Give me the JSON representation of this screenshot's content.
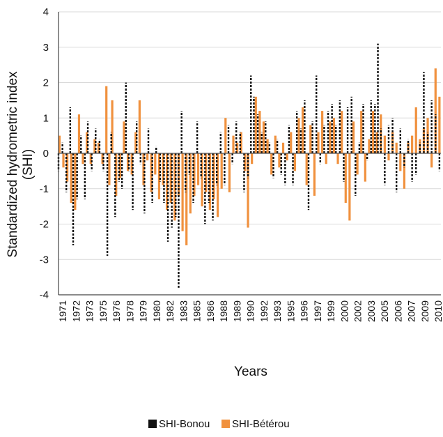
{
  "chart_data": {
    "type": "bar",
    "xlabel": "Years",
    "ylabel_lines": [
      "Standardized hydrometric index",
      "(SHI)"
    ],
    "ylim": [
      -4,
      4
    ],
    "yticks": [
      4,
      3,
      2,
      1,
      0,
      -1,
      -2,
      -3,
      -4
    ],
    "grid": "horizontal",
    "legend_position": "bottom",
    "x_year_range": [
      1971,
      2010
    ],
    "x_tick_labels": [
      "1971",
      "1972",
      "1973",
      "1975",
      "1976",
      "1978",
      "1979",
      "1980",
      "1982",
      "1983",
      "1985",
      "1986",
      "1988",
      "1989",
      "1990",
      "1992",
      "1993",
      "1995",
      "1996",
      "1997",
      "1999",
      "2000",
      "2002",
      "2003",
      "2005",
      "2006",
      "2007",
      "2009",
      "2010"
    ],
    "series": [
      {
        "name": "SHI-Bonou",
        "color": "#111111",
        "style": "dashed-bar",
        "x": [
          1971.0,
          1971.4,
          1971.8,
          1972.2,
          1972.5,
          1972.9,
          1973.3,
          1973.7,
          1974.0,
          1974.4,
          1974.8,
          1975.2,
          1975.6,
          1976.0,
          1976.4,
          1976.8,
          1977.2,
          1977.5,
          1977.9,
          1978.2,
          1978.6,
          1979.0,
          1979.4,
          1979.8,
          1980.2,
          1980.6,
          1981.0,
          1981.4,
          1981.8,
          1982.2,
          1982.6,
          1983.0,
          1983.3,
          1983.6,
          1984.0,
          1984.4,
          1984.8,
          1985.2,
          1985.6,
          1986.0,
          1986.4,
          1986.8,
          1987.2,
          1987.6,
          1988.0,
          1988.4,
          1988.8,
          1989.2,
          1989.6,
          1990.0,
          1990.4,
          1990.7,
          1991.0,
          1991.4,
          1991.8,
          1992.2,
          1992.6,
          1993.0,
          1993.4,
          1993.8,
          1994.2,
          1994.6,
          1995.0,
          1995.4,
          1995.8,
          1996.2,
          1996.6,
          1997.0,
          1997.4,
          1997.8,
          1998.2,
          1998.6,
          1999.0,
          1999.4,
          1999.8,
          2000.2,
          2000.6,
          2001.0,
          2001.4,
          2001.8,
          2002.2,
          2002.6,
          2003.0,
          2003.4,
          2003.7,
          2004.0,
          2004.4,
          2004.8,
          2005.2,
          2005.6,
          2006.0,
          2006.4,
          2006.8,
          2007.2,
          2007.6,
          2008.0,
          2008.4,
          2008.8,
          2009.2,
          2009.6,
          2010.0
        ],
        "values": [
          -0.5,
          0.3,
          -1.1,
          1.3,
          -2.6,
          -1.3,
          0.5,
          -1.3,
          0.9,
          -0.5,
          0.7,
          0.4,
          -0.5,
          -2.9,
          0.6,
          -1.8,
          -0.8,
          -1.0,
          2.0,
          -0.5,
          -1.6,
          0.9,
          -0.3,
          -1.7,
          0.7,
          -1.4,
          0.2,
          -0.8,
          -1.4,
          -2.5,
          -2.1,
          -1.8,
          -3.8,
          1.2,
          -1.1,
          -0.6,
          -1.4,
          0.9,
          -0.7,
          -2.0,
          -1.4,
          -1.9,
          -0.9,
          0.6,
          -0.9,
          0.8,
          -0.3,
          0.9,
          0.6,
          -1.1,
          -0.7,
          2.2,
          1.6,
          1.1,
          0.6,
          0.9,
          0.3,
          -0.7,
          0.4,
          -0.6,
          -0.9,
          0.8,
          -0.9,
          1.2,
          0.7,
          1.5,
          -1.6,
          0.9,
          2.2,
          -0.3,
          0.8,
          1.2,
          1.4,
          0.8,
          1.5,
          -0.8,
          1.3,
          1.6,
          -1.2,
          0.3,
          1.4,
          -0.2,
          1.5,
          1.4,
          3.1,
          0.7,
          -0.9,
          0.8,
          1.0,
          -1.1,
          0.7,
          -0.4,
          0.4,
          -0.8,
          -0.6,
          0.3,
          2.3,
          0.6,
          1.5,
          1.1,
          -0.5
        ]
      },
      {
        "name": "SHI-Bétérou",
        "color": "#f0913e",
        "style": "solid-bar",
        "x": [
          1971.1,
          1971.5,
          1971.9,
          1972.3,
          1972.7,
          1973.1,
          1973.5,
          1973.9,
          1974.3,
          1974.7,
          1975.1,
          1975.5,
          1975.9,
          1976.2,
          1976.5,
          1976.9,
          1977.3,
          1977.7,
          1978.1,
          1978.5,
          1978.9,
          1979.3,
          1979.7,
          1980.1,
          1980.5,
          1980.9,
          1981.3,
          1981.7,
          1982.1,
          1982.5,
          1982.9,
          1983.3,
          1983.7,
          1984.1,
          1984.5,
          1984.9,
          1985.3,
          1985.7,
          1986.1,
          1986.5,
          1986.9,
          1987.3,
          1987.7,
          1988.1,
          1988.5,
          1988.9,
          1989.3,
          1989.7,
          1990.1,
          1990.4,
          1990.8,
          1991.2,
          1991.6,
          1992.0,
          1992.4,
          1992.8,
          1993.2,
          1993.6,
          1994.0,
          1994.4,
          1994.8,
          1995.2,
          1995.6,
          1996.0,
          1996.4,
          1996.8,
          1997.2,
          1997.6,
          1998.0,
          1998.4,
          1998.8,
          1999.2,
          1999.6,
          2000.0,
          2000.4,
          2000.8,
          2001.2,
          2001.6,
          2002.0,
          2002.4,
          2002.8,
          2003.2,
          2003.6,
          2004.0,
          2004.4,
          2004.8,
          2005.2,
          2005.6,
          2006.0,
          2006.4,
          2006.8,
          2007.2,
          2007.6,
          2008.0,
          2008.4,
          2008.8,
          2009.2,
          2009.6,
          2010.0
        ],
        "values": [
          0.5,
          -0.4,
          -0.8,
          -1.4,
          -1.6,
          1.1,
          -0.3,
          0.6,
          -0.3,
          0.4,
          0.3,
          -0.3,
          1.9,
          -0.9,
          1.5,
          -1.2,
          -0.7,
          0.9,
          -0.5,
          -0.6,
          0.6,
          1.5,
          -0.9,
          -0.2,
          -1.1,
          -0.6,
          -1.3,
          -0.9,
          -1.6,
          -1.4,
          -1.9,
          -1.2,
          -2.2,
          -2.6,
          -1.7,
          -1.2,
          -0.9,
          -1.5,
          -1.1,
          -1.6,
          -1.3,
          -1.8,
          -1.0,
          1.0,
          -1.1,
          0.5,
          0.3,
          0.6,
          -0.5,
          -2.1,
          -0.3,
          1.6,
          1.2,
          0.9,
          0.4,
          -0.6,
          0.5,
          -0.4,
          0.3,
          -0.2,
          0.6,
          -0.5,
          1.0,
          1.3,
          -0.9,
          0.8,
          -1.2,
          0.6,
          1.2,
          -0.3,
          0.9,
          1.0,
          -0.3,
          1.2,
          -1.4,
          -1.9,
          0.9,
          -0.6,
          1.2,
          -0.8,
          0.4,
          1.2,
          0.6,
          1.1,
          0.5,
          -0.2,
          0.6,
          0.3,
          -0.5,
          -1.0,
          0.3,
          0.5,
          1.3,
          0.4,
          0.7,
          1.0,
          -0.4,
          2.4,
          1.6
        ]
      }
    ]
  }
}
